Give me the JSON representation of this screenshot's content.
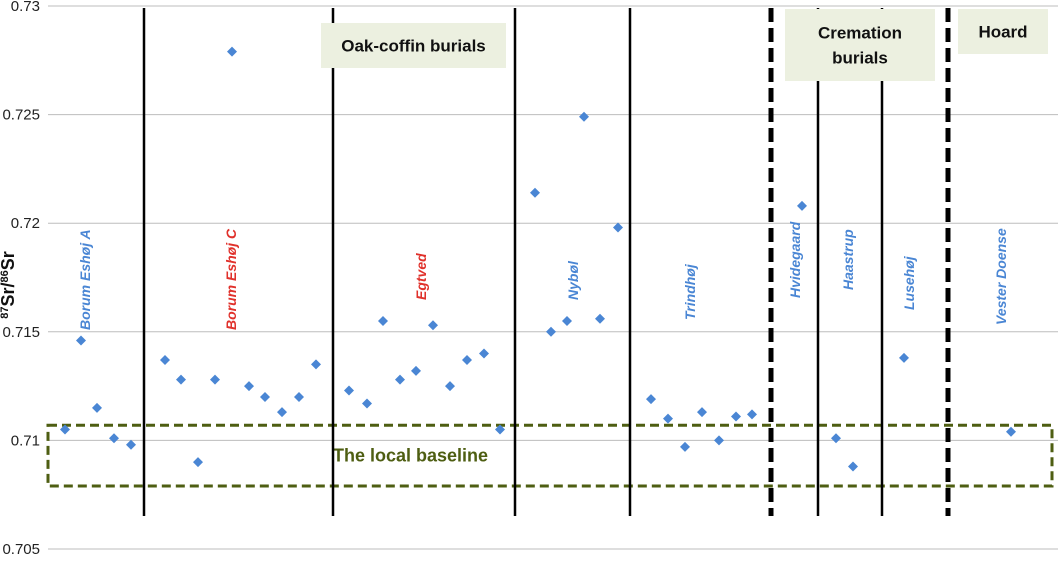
{
  "chart_data": {
    "type": "scatter",
    "ylabel_parts": {
      "sup1": "87",
      "base1": "Sr/",
      "sup2": "86",
      "base2": "Sr"
    },
    "ylim": [
      0.705,
      0.73
    ],
    "yticks": [
      "0.73",
      "0.725",
      "0.72",
      "0.715",
      "0.71",
      "0.705"
    ],
    "grid": "horizontal",
    "marker_color": "#4a86d4",
    "group_labels": [
      {
        "label": "Borum Eshøj A",
        "color": "#4a86d4"
      },
      {
        "label": "Borum Eshøj C",
        "color": "#e0312b"
      },
      {
        "label": "Egtved",
        "color": "#e0312b"
      },
      {
        "label": "Nybøl",
        "color": "#4a86d4"
      },
      {
        "label": "Trindhøj",
        "color": "#4a86d4"
      },
      {
        "label": "Hvidegaard",
        "color": "#4a86d4"
      },
      {
        "label": "Haastrup",
        "color": "#4a86d4"
      },
      {
        "label": "Lusehøj",
        "color": "#4a86d4"
      },
      {
        "label": "Vester Doense",
        "color": "#4a86d4"
      }
    ],
    "category_boxes": [
      {
        "lines": [
          "Oak-coffin burials"
        ]
      },
      {
        "lines": [
          "Cremation",
          "burials"
        ]
      },
      {
        "lines": [
          "Hoard"
        ]
      }
    ],
    "baseline": {
      "label": "The local    baseline",
      "y_range": [
        0.7079,
        0.7107
      ],
      "color": "#4e5e12"
    },
    "series": [
      {
        "group": "Borum Eshøj A",
        "values": [
          0.7105,
          0.7146,
          0.7115,
          0.7101,
          0.7098
        ]
      },
      {
        "group": "Borum Eshøj C",
        "values": [
          0.7137,
          0.7128,
          0.709,
          0.7128,
          0.7279,
          0.7125,
          0.712,
          0.7113,
          0.712,
          0.7135
        ]
      },
      {
        "group": "Egtved",
        "values": [
          0.7123,
          0.7117,
          0.7155,
          0.7128,
          0.7132,
          0.7153,
          0.7125,
          0.7137,
          0.714,
          0.7105
        ]
      },
      {
        "group": "Nybøl",
        "values": [
          0.7214,
          0.715,
          0.7155,
          0.7249,
          0.7156,
          0.7198
        ]
      },
      {
        "group": "Trindhøj",
        "values": [
          0.7119,
          0.711,
          0.7097,
          0.7113,
          0.71,
          0.7111,
          0.7112
        ]
      },
      {
        "group": "Hvidegaard",
        "values": [
          0.7208
        ]
      },
      {
        "group": "Haastrup",
        "values": [
          0.7101,
          0.7088
        ]
      },
      {
        "group": "Lusehøj",
        "values": [
          0.7138
        ]
      },
      {
        "group": "Vester Doense",
        "values": [
          0.7104
        ]
      }
    ]
  }
}
